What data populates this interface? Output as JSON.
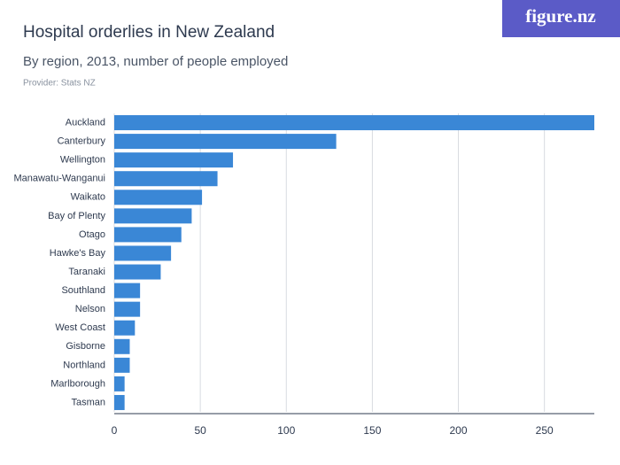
{
  "brand": "figure.nz",
  "chart_data": {
    "type": "hbar",
    "title": "Hospital orderlies in New Zealand",
    "subtitle": "By region, 2013, number of people employed",
    "source": "Provider: Stats NZ",
    "categories": [
      "Auckland",
      "Canterbury",
      "Wellington",
      "Manawatu-Wanganui",
      "Waikato",
      "Bay of Plenty",
      "Otago",
      "Hawke's Bay",
      "Taranaki",
      "Southland",
      "Nelson",
      "West Coast",
      "Gisborne",
      "Northland",
      "Marlborough",
      "Tasman"
    ],
    "values": [
      279,
      129,
      69,
      60,
      51,
      45,
      39,
      33,
      27,
      15,
      15,
      12,
      9,
      9,
      6,
      6
    ],
    "color": "#3a87d6",
    "xlim": [
      0,
      279
    ],
    "xticks": [
      0,
      50,
      100,
      150,
      200,
      250
    ],
    "grid": true
  }
}
